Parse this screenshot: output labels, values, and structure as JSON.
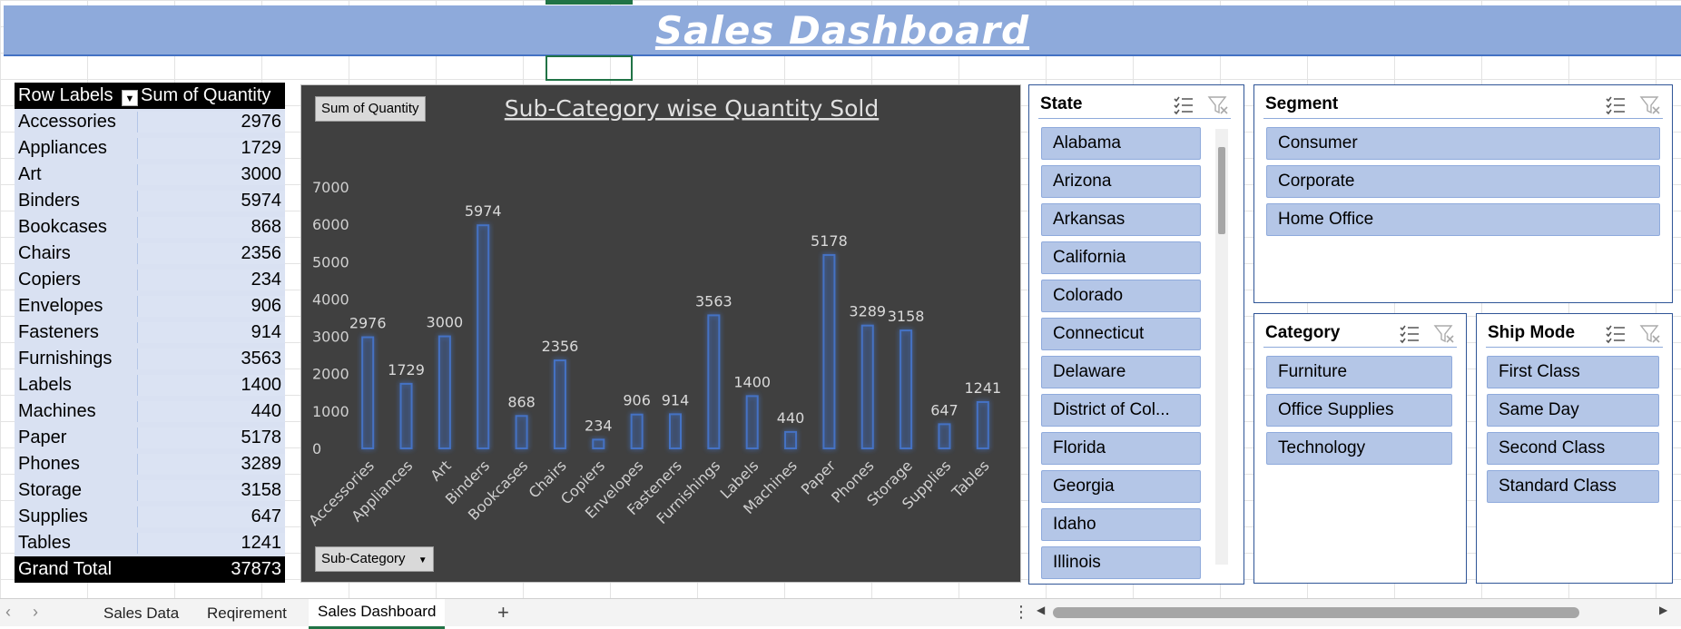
{
  "title": "Sales Dashboard",
  "pivot": {
    "header_label": "Row Labels",
    "header_value": "Sum of Quantity",
    "rows": [
      {
        "label": "Accessories",
        "value": "2976"
      },
      {
        "label": "Appliances",
        "value": "1729"
      },
      {
        "label": "Art",
        "value": "3000"
      },
      {
        "label": "Binders",
        "value": "5974"
      },
      {
        "label": "Bookcases",
        "value": "868"
      },
      {
        "label": "Chairs",
        "value": "2356"
      },
      {
        "label": "Copiers",
        "value": "234"
      },
      {
        "label": "Envelopes",
        "value": "906"
      },
      {
        "label": "Fasteners",
        "value": "914"
      },
      {
        "label": "Furnishings",
        "value": "3563"
      },
      {
        "label": "Labels",
        "value": "1400"
      },
      {
        "label": "Machines",
        "value": "440"
      },
      {
        "label": "Paper",
        "value": "5178"
      },
      {
        "label": "Phones",
        "value": "3289"
      },
      {
        "label": "Storage",
        "value": "3158"
      },
      {
        "label": "Supplies",
        "value": "647"
      },
      {
        "label": "Tables",
        "value": "1241"
      }
    ],
    "total_label": "Grand Total",
    "total_value": "37873"
  },
  "chart_buttons": {
    "value_field": "Sum of Quantity",
    "axis_field": "Sub-Category"
  },
  "chart_data": {
    "type": "bar",
    "title": "Sub-Category wise Quantity Sold",
    "categories": [
      "Accessories",
      "Appliances",
      "Art",
      "Binders",
      "Bookcases",
      "Chairs",
      "Copiers",
      "Envelopes",
      "Fasteners",
      "Furnishings",
      "Labels",
      "Machines",
      "Paper",
      "Phones",
      "Storage",
      "Supplies",
      "Tables"
    ],
    "values": [
      2976,
      1729,
      3000,
      5974,
      868,
      2356,
      234,
      906,
      914,
      3563,
      1400,
      440,
      5178,
      3289,
      3158,
      647,
      1241
    ],
    "yticks": [
      0,
      1000,
      2000,
      3000,
      4000,
      5000,
      6000,
      7000
    ],
    "ylim": [
      0,
      7000
    ],
    "bar_color": "#4472c4",
    "background": "#404040"
  },
  "slicers": {
    "state": {
      "title": "State",
      "items": [
        "Alabama",
        "Arizona",
        "Arkansas",
        "California",
        "Colorado",
        "Connecticut",
        "Delaware",
        "District of Col...",
        "Florida",
        "Georgia",
        "Idaho",
        "Illinois"
      ]
    },
    "segment": {
      "title": "Segment",
      "items": [
        "Consumer",
        "Corporate",
        "Home Office"
      ]
    },
    "category": {
      "title": "Category",
      "items": [
        "Furniture",
        "Office Supplies",
        "Technology"
      ]
    },
    "ship_mode": {
      "title": "Ship Mode",
      "items": [
        "First Class",
        "Same Day",
        "Second Class",
        "Standard Class"
      ]
    }
  },
  "sheet_tabs": [
    {
      "label": "Sales Data",
      "active": false
    },
    {
      "label": "Reqirement",
      "active": false
    },
    {
      "label": "Sales Dashboard",
      "active": true
    }
  ],
  "add_sheet": "+",
  "colors": {
    "accent": "#217346",
    "title_bar": "#8eaadb",
    "slicer_item": "#b4c6e7"
  }
}
